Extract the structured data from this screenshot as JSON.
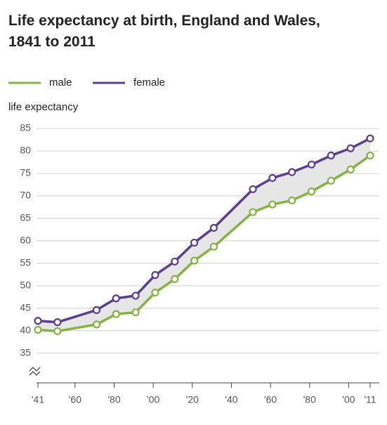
{
  "chart_data": {
    "type": "line",
    "title": "Life expectancy at birth, England and Wales, 1841 to 2011",
    "y_label": "life expectancy",
    "x": [
      1841,
      1851,
      1871,
      1881,
      1891,
      1901,
      1911,
      1921,
      1931,
      1951,
      1961,
      1971,
      1981,
      1991,
      2001,
      2011
    ],
    "series": [
      {
        "name": "male",
        "color": "#84b341",
        "values": [
          40.2,
          39.9,
          41.4,
          43.7,
          44.1,
          48.5,
          51.5,
          55.6,
          58.7,
          66.4,
          68.1,
          69.0,
          71.0,
          73.4,
          75.9,
          79.0
        ]
      },
      {
        "name": "female",
        "color": "#5c3f8c",
        "values": [
          42.2,
          41.9,
          44.6,
          47.2,
          47.8,
          52.4,
          55.4,
          59.6,
          62.9,
          71.5,
          74.0,
          75.3,
          77.0,
          79.0,
          80.6,
          82.8
        ]
      }
    ],
    "xlim": [
      1841,
      2011
    ],
    "xticks": [
      {
        "value": 1841,
        "label": "'41"
      },
      {
        "value": 1860,
        "label": "'60"
      },
      {
        "value": 1880,
        "label": "'80"
      },
      {
        "value": 1900,
        "label": "'00"
      },
      {
        "value": 1920,
        "label": "'20"
      },
      {
        "value": 1940,
        "label": "'40"
      },
      {
        "value": 1960,
        "label": "'60"
      },
      {
        "value": 1980,
        "label": "'80"
      },
      {
        "value": 2000,
        "label": "'00"
      },
      {
        "value": 2011,
        "label": "'11"
      }
    ],
    "ylim": [
      28.4,
      86
    ],
    "yticks": [
      35,
      40,
      45,
      50,
      55,
      60,
      65,
      70,
      75,
      80,
      85
    ],
    "grid": true
  }
}
